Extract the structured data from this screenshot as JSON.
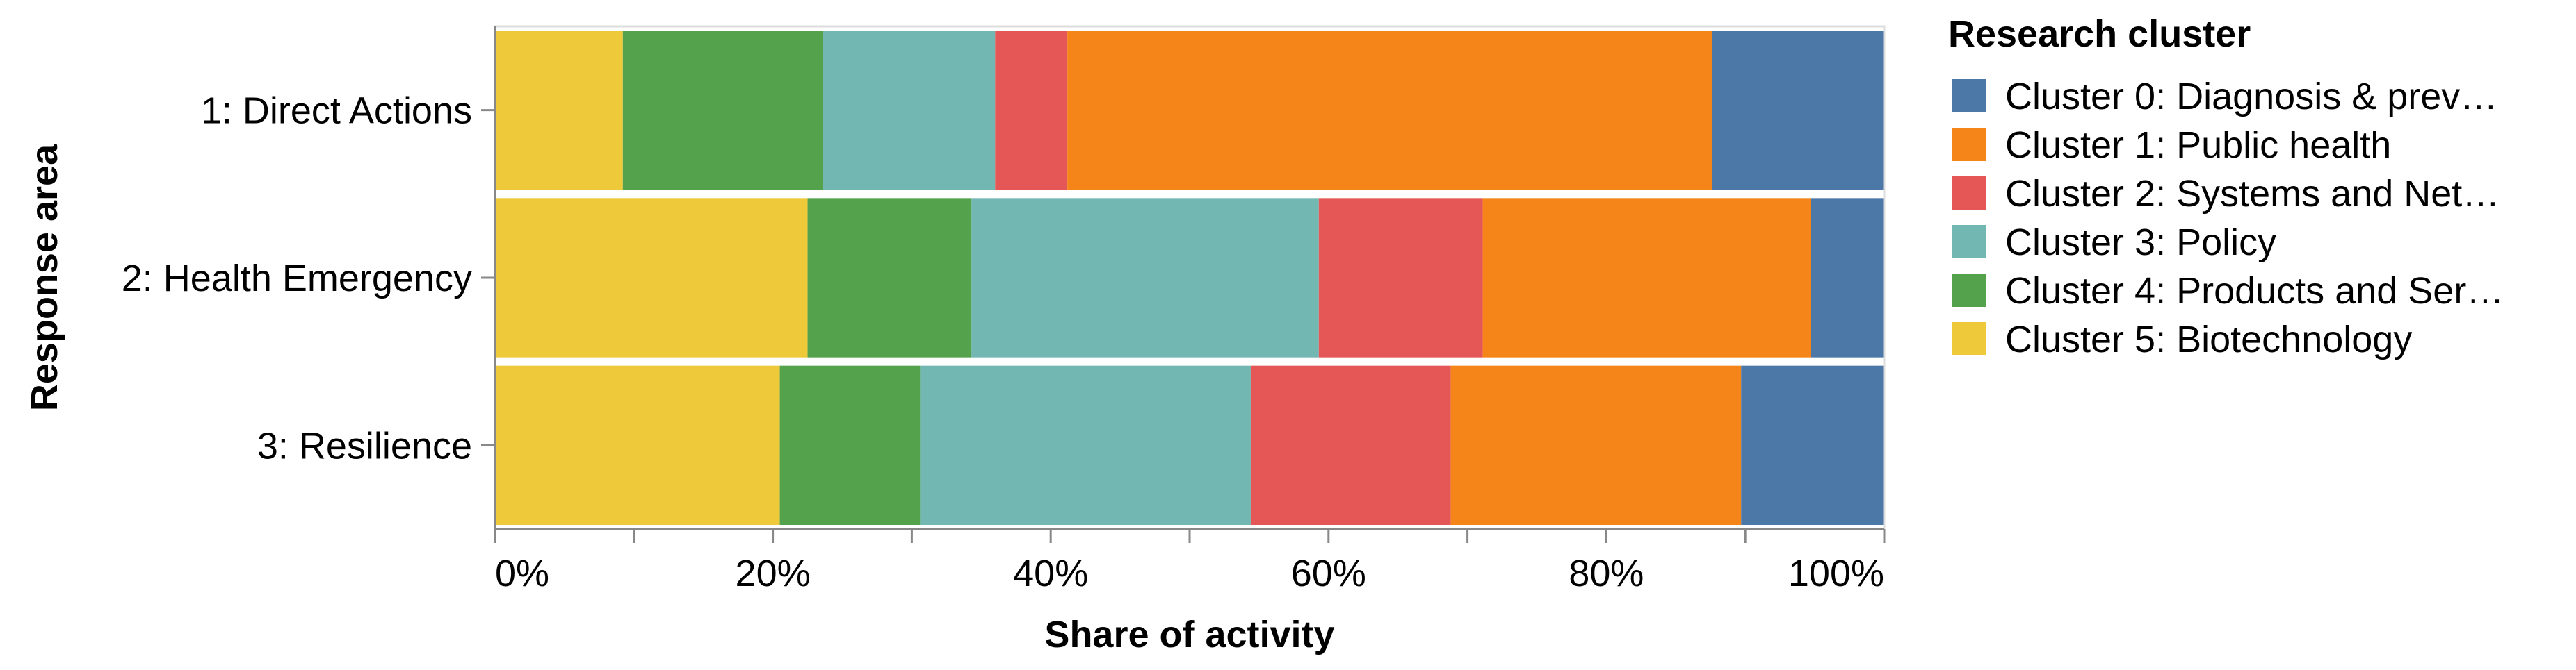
{
  "chart_data": {
    "type": "bar",
    "orientation": "horizontal",
    "stacked": "normalized",
    "xlabel": "Share of activity",
    "ylabel": "Response area",
    "xlim": [
      0,
      1
    ],
    "x_ticks": [
      "0%",
      "20%",
      "40%",
      "60%",
      "80%",
      "100%"
    ],
    "categories": [
      "1: Direct Actions",
      "2: Health Emergency",
      "3: Resilience"
    ],
    "stack_order": [
      "Cluster 5: Biotechnology",
      "Cluster 4: Products and Ser…",
      "Cluster 3: Policy",
      "Cluster 2: Systems and Net…",
      "Cluster 1: Public health",
      "Cluster 0: Diagnosis & prev…"
    ],
    "series": [
      {
        "name": "Cluster 0: Diagnosis & prev…",
        "color": "#4C78A8",
        "values": [
          0.124,
          0.053,
          0.103
        ]
      },
      {
        "name": "Cluster 1: Public health",
        "color": "#F58518",
        "values": [
          0.464,
          0.236,
          0.209
        ]
      },
      {
        "name": "Cluster 2: Systems and Net…",
        "color": "#E45756",
        "values": [
          0.052,
          0.118,
          0.144
        ]
      },
      {
        "name": "Cluster 3: Policy",
        "color": "#72B7B2",
        "values": [
          0.124,
          0.25,
          0.238
        ]
      },
      {
        "name": "Cluster 4: Products and Ser…",
        "color": "#54A24B",
        "values": [
          0.144,
          0.118,
          0.101
        ]
      },
      {
        "name": "Cluster 5: Biotechnology",
        "color": "#EECA3B",
        "values": [
          0.092,
          0.225,
          0.205
        ]
      }
    ],
    "legend": {
      "title": "Research cluster",
      "position": "right",
      "entries": [
        "Cluster 0: Diagnosis & prev…",
        "Cluster 1: Public health",
        "Cluster 2: Systems and Net…",
        "Cluster 3: Policy",
        "Cluster 4: Products and Ser…",
        "Cluster 5: Biotechnology"
      ]
    },
    "grid": false
  }
}
